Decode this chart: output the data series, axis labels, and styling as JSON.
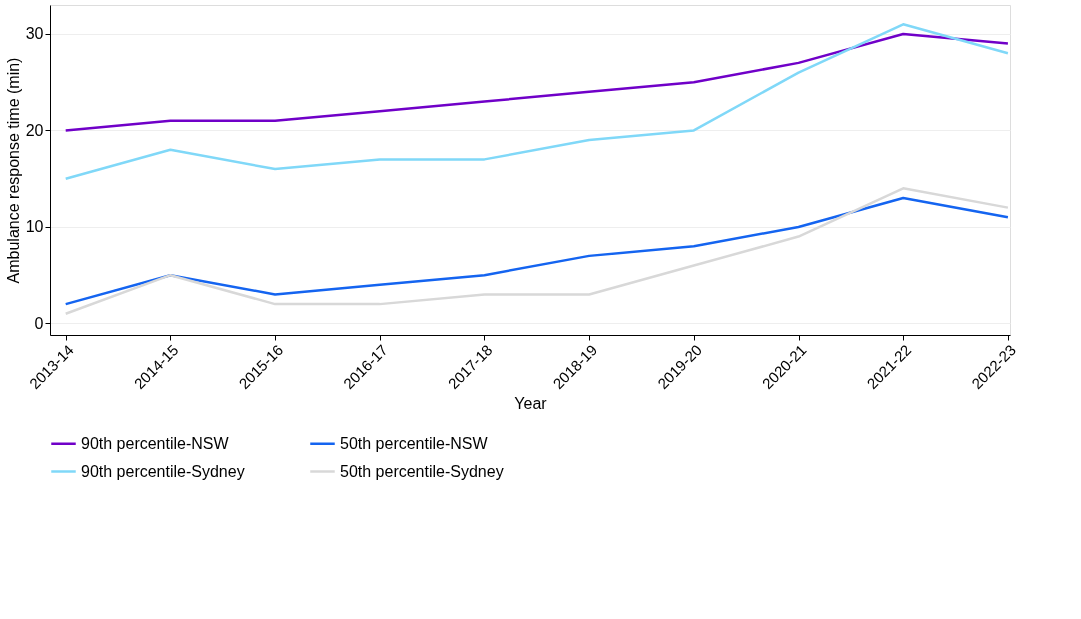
{
  "chart_data": {
    "type": "line",
    "xlabel": "Year",
    "ylabel": "Ambulance response time (min)",
    "categories": [
      "2013-14",
      "2014-15",
      "2015-16",
      "2016-17",
      "2017-18",
      "2018-19",
      "2019-20",
      "2020-21",
      "2021-22",
      "2022-23"
    ],
    "series": [
      {
        "name": "90th percentile-NSW",
        "color": "#7000c8",
        "values": [
          20,
          21,
          21,
          22,
          23,
          24,
          25,
          27,
          30,
          29
        ]
      },
      {
        "name": "50th percentile-NSW",
        "color": "#1464f0",
        "values": [
          2,
          5,
          3,
          4,
          5,
          7,
          8,
          10,
          13,
          11
        ]
      },
      {
        "name": "90th percentile-Sydney",
        "color": "#80d8f8",
        "values": [
          15,
          18,
          16,
          17,
          17,
          19,
          20,
          26,
          31,
          28
        ]
      },
      {
        "name": "50th percentile-Sydney",
        "color": "#d8d8d8",
        "values": [
          1,
          5,
          2,
          2,
          3,
          3,
          6,
          9,
          14,
          12
        ]
      }
    ],
    "ylim": [
      -1.2,
      33
    ],
    "yticks": [
      0,
      10,
      20,
      30
    ],
    "grid": "y",
    "legend": "bottom",
    "marker": "none",
    "line_style": "solid"
  }
}
